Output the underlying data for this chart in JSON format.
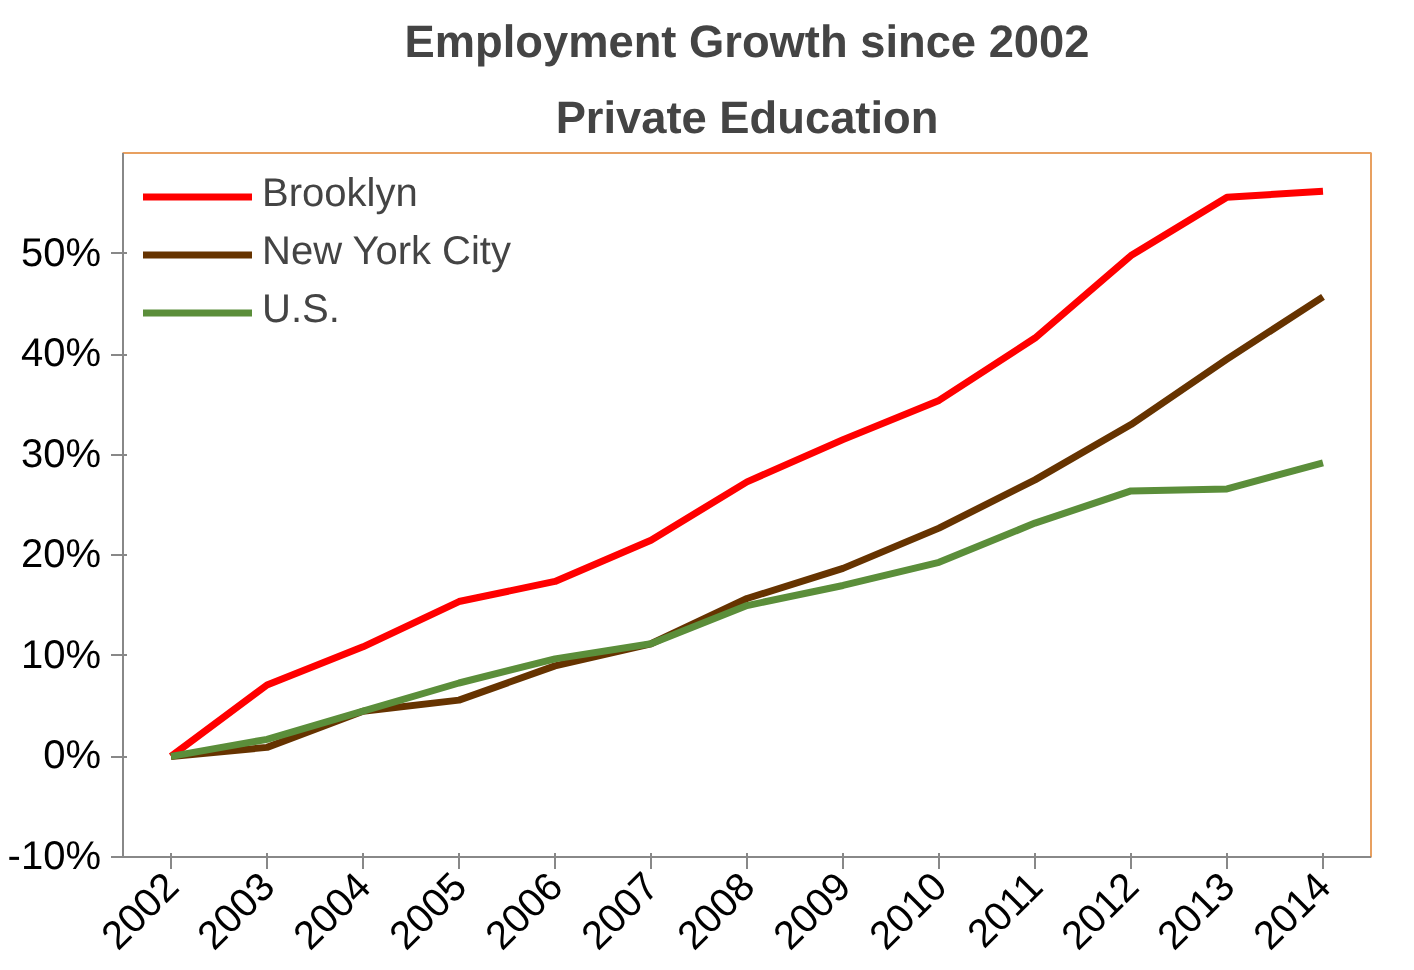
{
  "chart_data": {
    "type": "line",
    "title": "Employment Growth since 2002",
    "subtitle": "Private Education",
    "categories": [
      "2002",
      "2003",
      "2004",
      "2005",
      "2006",
      "2007",
      "2008",
      "2009",
      "2010",
      "2011",
      "2012",
      "2013",
      "2014"
    ],
    "series": [
      {
        "name": "Brooklyn",
        "color": "#ff0000",
        "values": [
          0,
          7.1,
          10.9,
          15.4,
          17.4,
          21.5,
          27.3,
          31.5,
          35.4,
          41.6,
          49.8,
          55.6,
          56.2
        ]
      },
      {
        "name": "New York City",
        "color": "#663300",
        "values": [
          0,
          0.9,
          4.5,
          5.6,
          9.0,
          11.2,
          15.7,
          18.7,
          22.7,
          27.5,
          33.0,
          39.5,
          45.7
        ]
      },
      {
        "name": "U.S.",
        "color": "#5b8e3a",
        "values": [
          0,
          1.7,
          4.5,
          7.3,
          9.7,
          11.2,
          15.0,
          17.0,
          19.3,
          23.2,
          26.4,
          26.6,
          29.2
        ]
      }
    ],
    "ylim": [
      -10,
      60
    ],
    "yticks": [
      {
        "value": -10,
        "label": "-10%"
      },
      {
        "value": 0,
        "label": "0%"
      },
      {
        "value": 10,
        "label": "10%"
      },
      {
        "value": 20,
        "label": "20%"
      },
      {
        "value": 30,
        "label": "30%"
      },
      {
        "value": 40,
        "label": "40%"
      },
      {
        "value": 50,
        "label": "50%"
      }
    ],
    "grid": false,
    "legend": "top left",
    "marker": "none",
    "line_style": "solid"
  }
}
